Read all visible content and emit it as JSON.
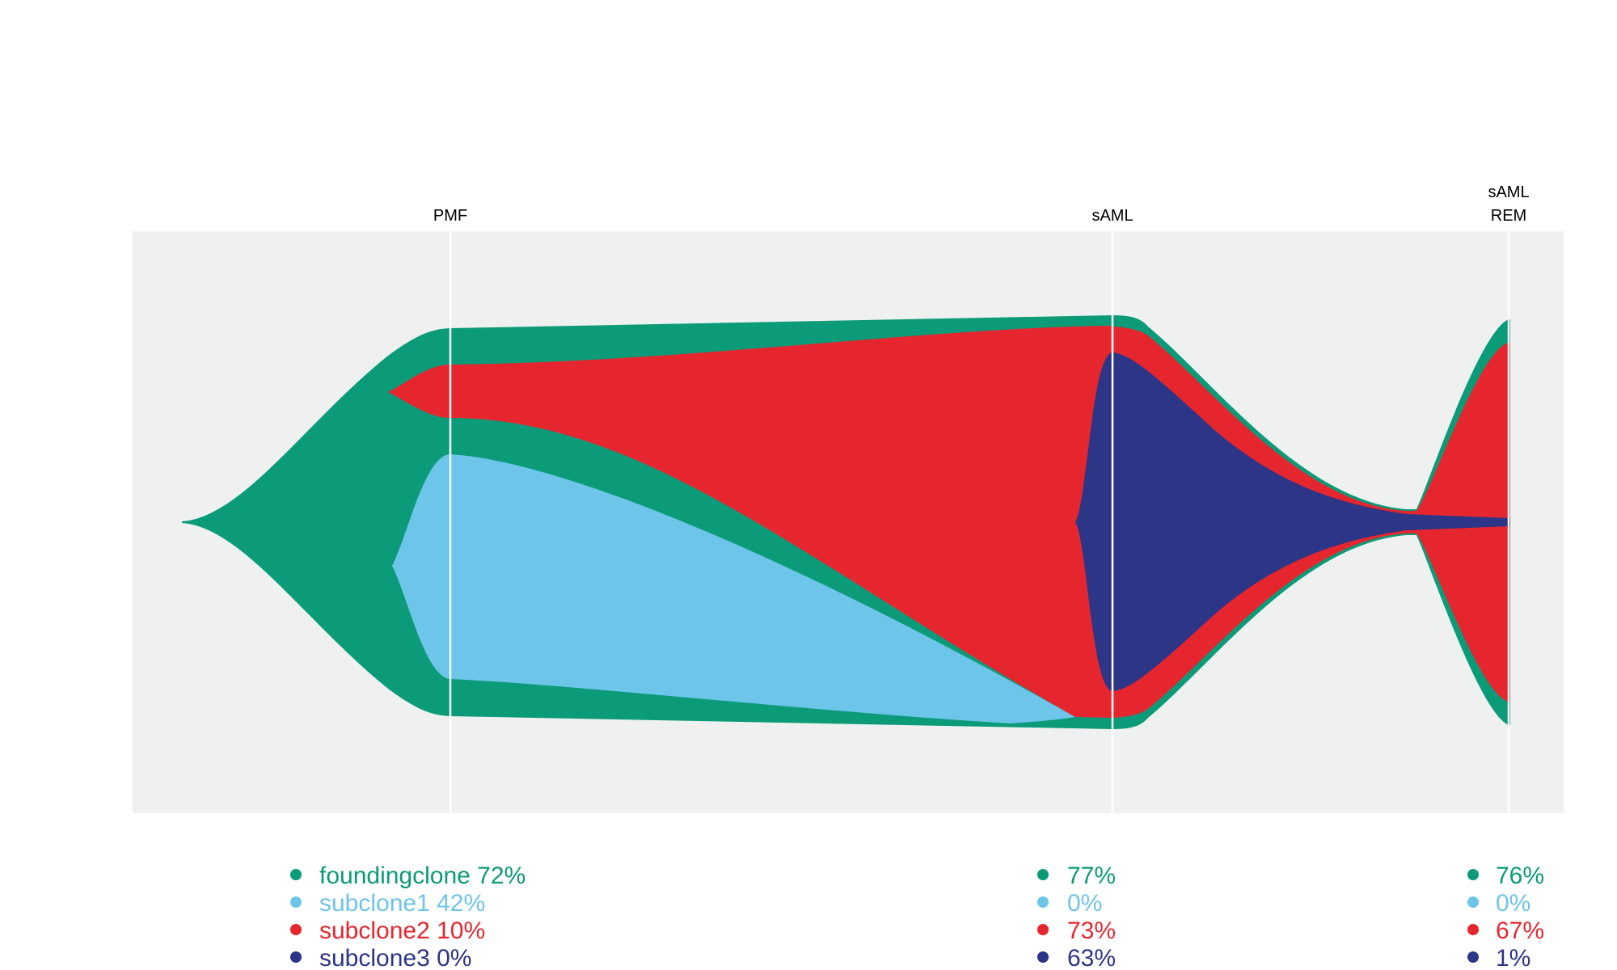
{
  "chart_data": {
    "type": "area",
    "subtype": "fishplot",
    "timepoints": [
      {
        "label_lines": [
          "PMF"
        ]
      },
      {
        "label_lines": [
          "sAML"
        ]
      },
      {
        "label_lines": [
          "sAML",
          "REM"
        ]
      }
    ],
    "clones": [
      {
        "name": "foundingclone",
        "color": "#0b9b78",
        "parent": null,
        "values": [
          72,
          77,
          76
        ]
      },
      {
        "name": "subclone1",
        "color": "#6ec5ea",
        "parent": "foundingclone",
        "values": [
          42,
          0,
          0
        ]
      },
      {
        "name": "subclone2",
        "color": "#e6262f",
        "parent": "foundingclone",
        "values": [
          10,
          73,
          67
        ]
      },
      {
        "name": "subclone3",
        "color": "#2c3586",
        "parent": "subclone2",
        "values": [
          0,
          63,
          1
        ]
      }
    ],
    "legend": [
      {
        "color": "#0b9b78",
        "text": "foundingclone 72%"
      },
      {
        "color": "#6ec5ea",
        "text": "subclone1 42%"
      },
      {
        "color": "#e6262f",
        "text": "subclone2 10%"
      },
      {
        "color": "#2c3586",
        "text": "subclone3 0%"
      }
    ],
    "value_columns": [
      [
        {
          "color": "#0b9b78",
          "text": "77%"
        },
        {
          "color": "#6ec5ea",
          "text": "0%"
        },
        {
          "color": "#e6262f",
          "text": "73%"
        },
        {
          "color": "#2c3586",
          "text": "63%"
        }
      ],
      [
        {
          "color": "#0b9b78",
          "text": "76%"
        },
        {
          "color": "#6ec5ea",
          "text": "0%"
        },
        {
          "color": "#e6262f",
          "text": "67%"
        },
        {
          "color": "#2c3586",
          "text": "1%"
        }
      ]
    ],
    "background_color": "#eff1f0",
    "grid": false
  }
}
